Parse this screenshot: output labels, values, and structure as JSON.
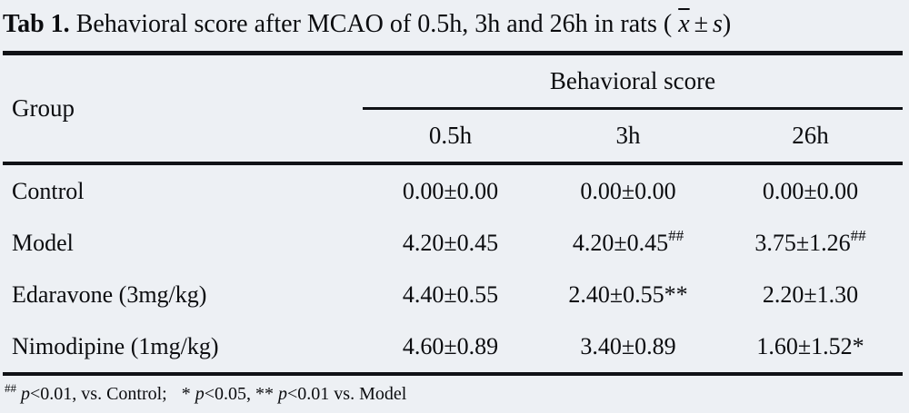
{
  "title": {
    "label": "Tab 1.",
    "text": "Behavioral score after MCAO of 0.5h, 3h and 26h in rats",
    "open_paren": "(",
    "mean_symbol": "x",
    "pm": "±",
    "sd_symbol": "s",
    "close_paren": ")"
  },
  "table": {
    "group_header": "Group",
    "spanner": "Behavioral score",
    "time_headers": [
      "0.5h",
      "3h",
      "26h"
    ],
    "rows": [
      {
        "group": "Control",
        "cells": [
          {
            "v": "0.00±0.00",
            "sup": ""
          },
          {
            "v": "0.00±0.00",
            "sup": ""
          },
          {
            "v": "0.00±0.00",
            "sup": ""
          }
        ]
      },
      {
        "group": "Model",
        "cells": [
          {
            "v": "4.20±0.45",
            "sup": ""
          },
          {
            "v": "4.20±0.45",
            "sup": "##"
          },
          {
            "v": "3.75±1.26",
            "sup": "##"
          }
        ]
      },
      {
        "group": "Edaravone (3mg/kg)",
        "cells": [
          {
            "v": "4.40±0.55",
            "sup": ""
          },
          {
            "v": "2.40±0.55**",
            "sup": ""
          },
          {
            "v": "2.20±1.30",
            "sup": ""
          }
        ]
      },
      {
        "group": "Nimodipine (1mg/kg)",
        "cells": [
          {
            "v": "4.60±0.89",
            "sup": ""
          },
          {
            "v": "3.40±0.89",
            "sup": ""
          },
          {
            "v": "1.60±1.52*",
            "sup": ""
          }
        ]
      }
    ]
  },
  "footnote": {
    "marker": "##",
    "p1": "p",
    "seg1": "<0.01, vs. Control;",
    "seg2": "* ",
    "p2": "p",
    "seg3": "<0.05, ** ",
    "p3": "p",
    "seg4": "<0.01 vs. Model"
  },
  "colors": {
    "background": "#edf0f4",
    "text": "#0b0c0f",
    "rule": "#101216"
  }
}
